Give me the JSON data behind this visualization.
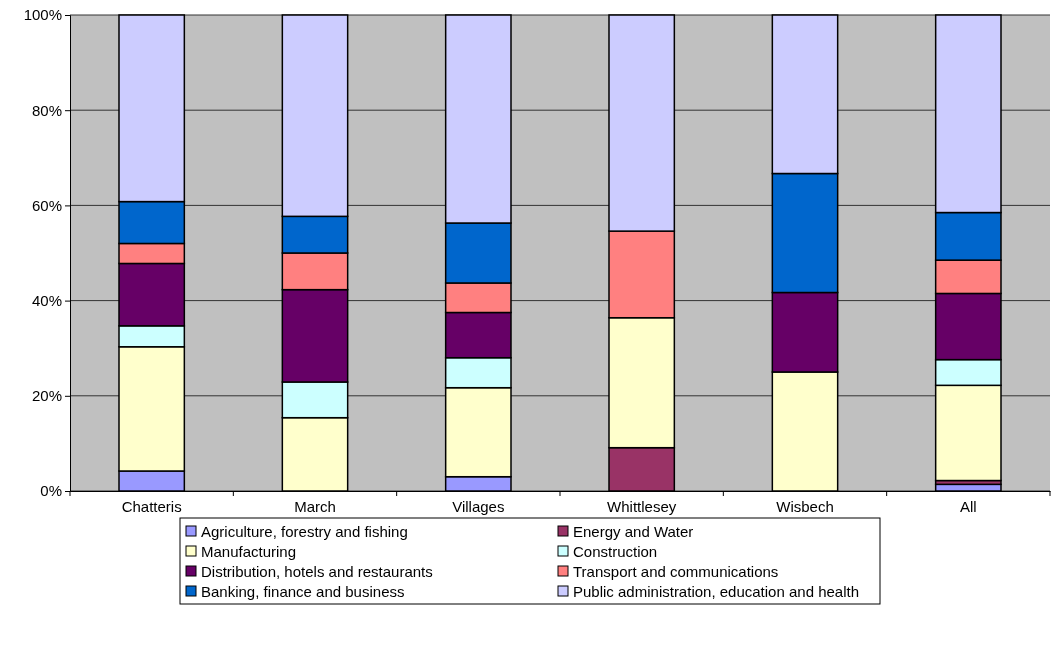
{
  "chart_data": {
    "type": "bar",
    "stacked": true,
    "categories": [
      "Chatteris",
      "March",
      "Villages",
      "Whittlesey",
      "Wisbech",
      "All"
    ],
    "series": [
      {
        "name": "Agriculture, forestry and fishing",
        "color": "#9999ff",
        "values": [
          4.2,
          0,
          3.0,
          0,
          0,
          1.4
        ]
      },
      {
        "name": "Energy and Water",
        "color": "#993366",
        "values": [
          0,
          0,
          0,
          9.1,
          0,
          0.8
        ]
      },
      {
        "name": "Manufacturing",
        "color": "#ffffcc",
        "values": [
          26.1,
          15.4,
          18.7,
          27.3,
          25.0,
          20.0
        ]
      },
      {
        "name": "Construction",
        "color": "#ccffff",
        "values": [
          4.4,
          7.5,
          6.3,
          0,
          0,
          5.4
        ]
      },
      {
        "name": "Distribution, hotels and restaurants",
        "color": "#660066",
        "values": [
          13.1,
          19.4,
          9.5,
          0,
          16.7,
          13.9
        ]
      },
      {
        "name": "Transport and communications",
        "color": "#ff8080",
        "values": [
          4.2,
          7.7,
          6.2,
          18.2,
          0,
          7.0
        ]
      },
      {
        "name": "Banking, finance and business",
        "color": "#0066cc",
        "values": [
          8.8,
          7.7,
          12.6,
          0,
          25.0,
          10.0
        ]
      },
      {
        "name": "Public administration, education and health",
        "color": "#ccccff",
        "values": [
          39.2,
          42.3,
          43.7,
          45.4,
          33.3,
          41.5
        ]
      }
    ],
    "ylim": [
      0,
      100
    ],
    "yticks": [
      {
        "value": 0,
        "label": "0%"
      },
      {
        "value": 20,
        "label": "20%"
      },
      {
        "value": 40,
        "label": "40%"
      },
      {
        "value": 60,
        "label": "60%"
      },
      {
        "value": 80,
        "label": "80%"
      },
      {
        "value": 100,
        "label": "100%"
      }
    ],
    "grid": "y",
    "legend": "bottom"
  }
}
